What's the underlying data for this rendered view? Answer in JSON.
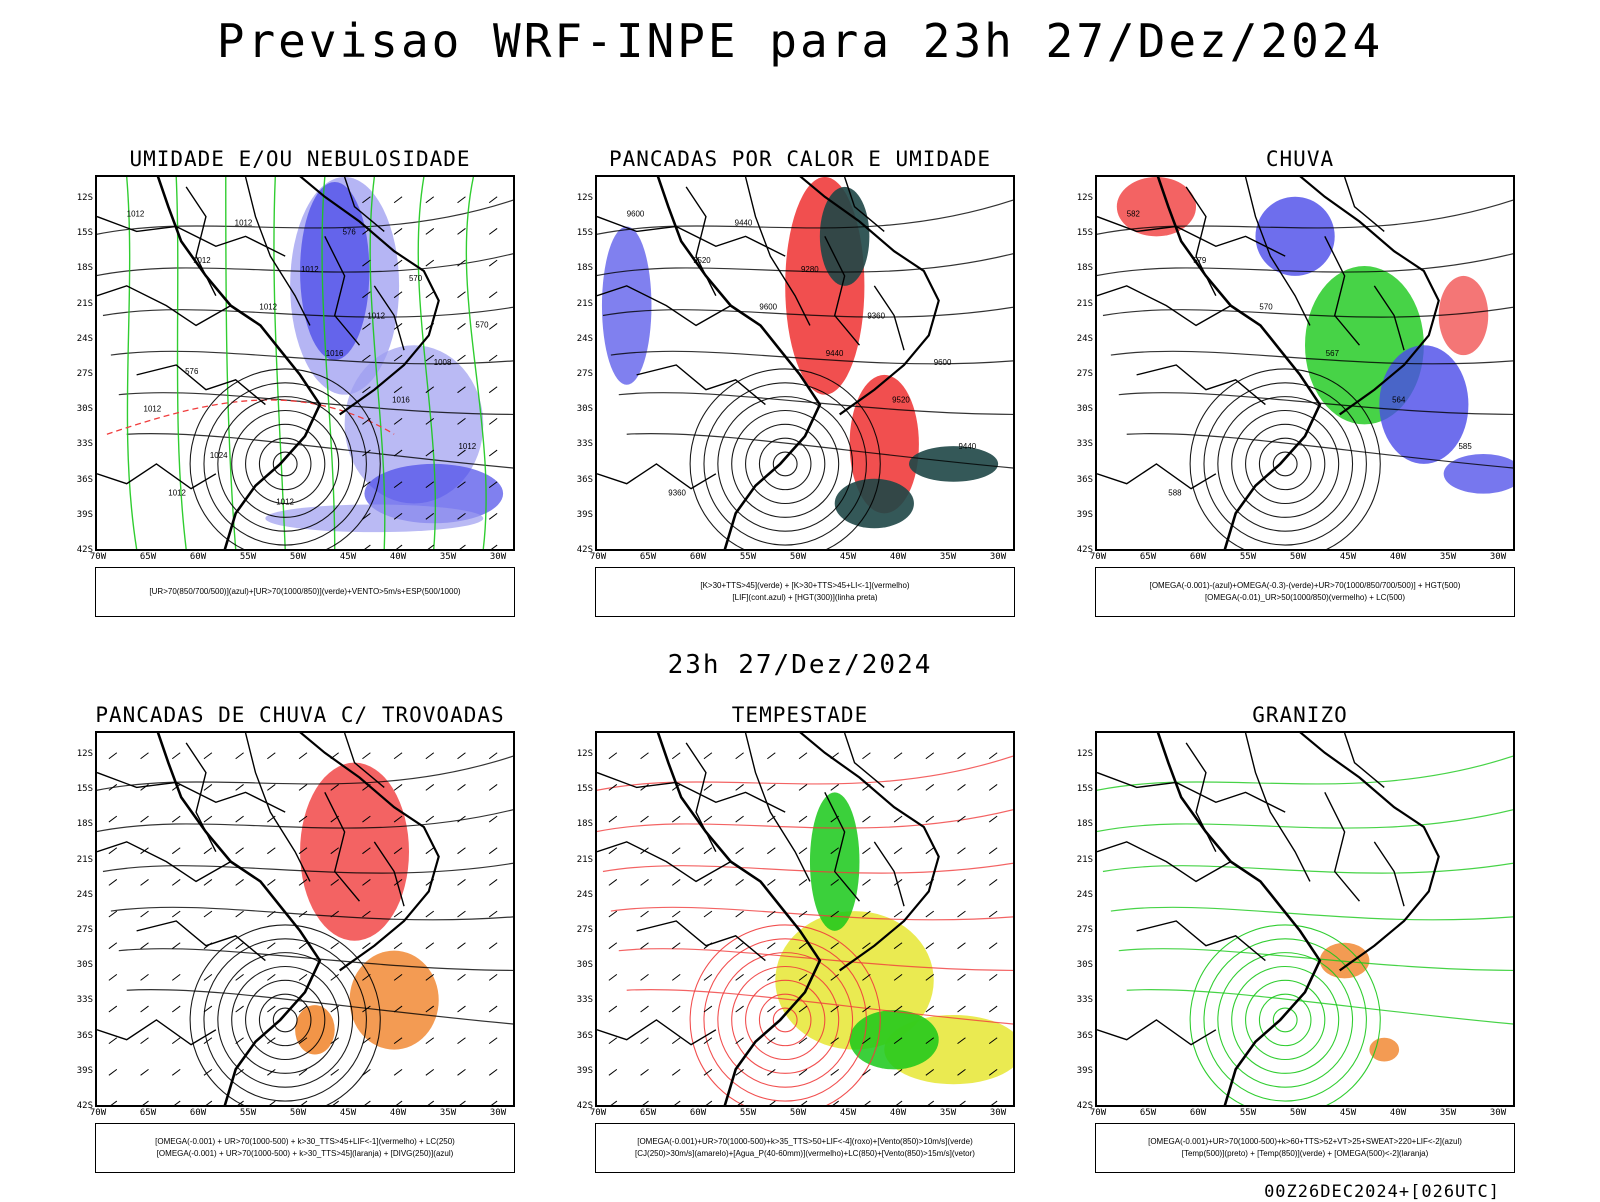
{
  "main_title": "Previsao WRF-INPE  para 23h 27/Dez/2024",
  "mid_title": "23h 27/Dez/2024",
  "footer": "00Z26DEC2024+[026UTC]",
  "lat_ticks": [
    "12S",
    "15S",
    "18S",
    "21S",
    "24S",
    "27S",
    "30S",
    "33S",
    "36S",
    "39S",
    "42S"
  ],
  "lon_ticks": [
    "70W",
    "65W",
    "60W",
    "55W",
    "50W",
    "45W",
    "40W",
    "35W",
    "30W"
  ],
  "colors": {
    "blue": "#4a4ae8",
    "lightblue": "#9c9cf0",
    "green": "#19c819",
    "red": "#f03c3c",
    "darkteal": "#1e4646",
    "yellow": "#e6e632",
    "orange": "#f08228",
    "black": "#000000"
  },
  "panels": [
    {
      "title": "UMIDADE E/OU NEBULOSIDADE",
      "legend": [
        "[UR>70(850/700/500)](azul)+[UR>70(1000/850)](verde)+VENTO>5m/s+ESP(500/1000)"
      ],
      "contour_labels": [
        "1012",
        "1012",
        "1012",
        "1016",
        "1016",
        "1012",
        "1012",
        "1012",
        "1012",
        "1012",
        "1008",
        "1012",
        "1024",
        "1012",
        "576",
        "570",
        "570",
        "576"
      ]
    },
    {
      "title": "PANCADAS POR CALOR E UMIDADE",
      "legend": [
        "[K>30+TTS>45](verde) + [K>30+TTS>45+LI<-1](vermelho)",
        "[LIF](cont.azul) + [HGT(300)](linha preta)"
      ],
      "contour_labels": [
        "9600",
        "9520",
        "9600",
        "9440",
        "9520",
        "9440",
        "9360",
        "9440",
        "9280",
        "9360",
        "9600"
      ]
    },
    {
      "title": "CHUVA",
      "legend": [
        "[OMEGA(-0.001)-(azul)+OMEGA(-0.3)-(verde)+UR>70(1000/850/700/500)] + HGT(500)",
        "[OMEGA(-0.01)_UR>50(1000/850)(vermelho) + LC(500)"
      ],
      "contour_labels": [
        "582",
        "579",
        "570",
        "567",
        "564",
        "585",
        "588"
      ]
    },
    {
      "title": "PANCADAS DE CHUVA C/ TROVOADAS",
      "legend": [
        "[OMEGA(-0.001) + UR>70(1000-500) + k>30_TTS>45+LIF<-1](vermelho) + LC(250)",
        "[OMEGA(-0.001) + UR>70(1000-500) + k>30_TTS>45](laranja) + [DIVG(250)](azul)"
      ],
      "contour_labels": []
    },
    {
      "title": "TEMPESTADE",
      "legend": [
        "[OMEGA(-0.001)+UR>70(1000-500)+k>35_TTS>50+LIF<-4](roxo)+[Vento(850)>10m/s](verde)",
        "[CJ(250)>30m/s](amarelo)+[Agua_P(40-60mm)](vermelho)+LC(850)+[Vento(850)>15m/s](vetor)"
      ],
      "contour_labels": []
    },
    {
      "title": "GRANIZO",
      "legend": [
        "[OMEGA(-0.001)+UR>70(1000-500)+k>60+TTS>52+VT>25+SWEAT>220+LIF<-2](azul)",
        "[Temp(500)](preto) + [Temp(850)](verde) + [OMEGA(500)<-2](laranja)"
      ],
      "contour_labels": []
    }
  ]
}
